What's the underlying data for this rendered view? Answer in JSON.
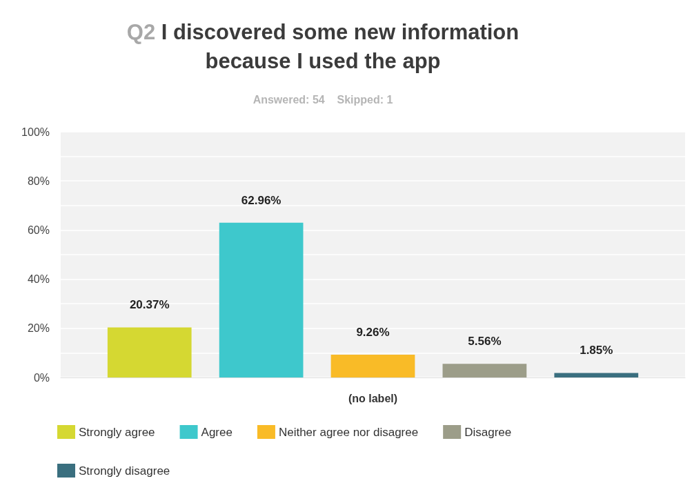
{
  "chart_data": {
    "type": "bar",
    "title": "Q2 I discovered some new information because I used the app",
    "subtitle": "Answered: 54    Skipped: 1",
    "categories": [
      "(no label)"
    ],
    "series": [
      {
        "name": "Strongly agree",
        "color": "#d5d832",
        "values": [
          20.37
        ],
        "value_labels": [
          "20.37%"
        ]
      },
      {
        "name": "Agree",
        "color": "#3ec8cc",
        "values": [
          62.96
        ],
        "value_labels": [
          "62.96%"
        ]
      },
      {
        "name": "Neither agree nor disagree",
        "color": "#f9bb27",
        "values": [
          9.26
        ],
        "value_labels": [
          "9.26%"
        ]
      },
      {
        "name": "Disagree",
        "color": "#9c9d89",
        "values": [
          5.56
        ],
        "value_labels": [
          "5.56%"
        ]
      },
      {
        "name": "Strongly disagree",
        "color": "#3a6f7f",
        "values": [
          1.85
        ],
        "value_labels": [
          "1.85%"
        ]
      }
    ],
    "ylim": [
      0,
      100
    ],
    "yticks": [
      {
        "value": 0,
        "label": "0%"
      },
      {
        "value": 10,
        "label": null
      },
      {
        "value": 20,
        "label": "20%"
      },
      {
        "value": 30,
        "label": null
      },
      {
        "value": 40,
        "label": "40%"
      },
      {
        "value": 50,
        "label": null
      },
      {
        "value": 60,
        "label": "60%"
      },
      {
        "value": 70,
        "label": null
      },
      {
        "value": 80,
        "label": "80%"
      },
      {
        "value": 90,
        "label": null
      },
      {
        "value": 100,
        "label": "100%"
      }
    ],
    "grid": "y",
    "legend": "bottom left"
  }
}
